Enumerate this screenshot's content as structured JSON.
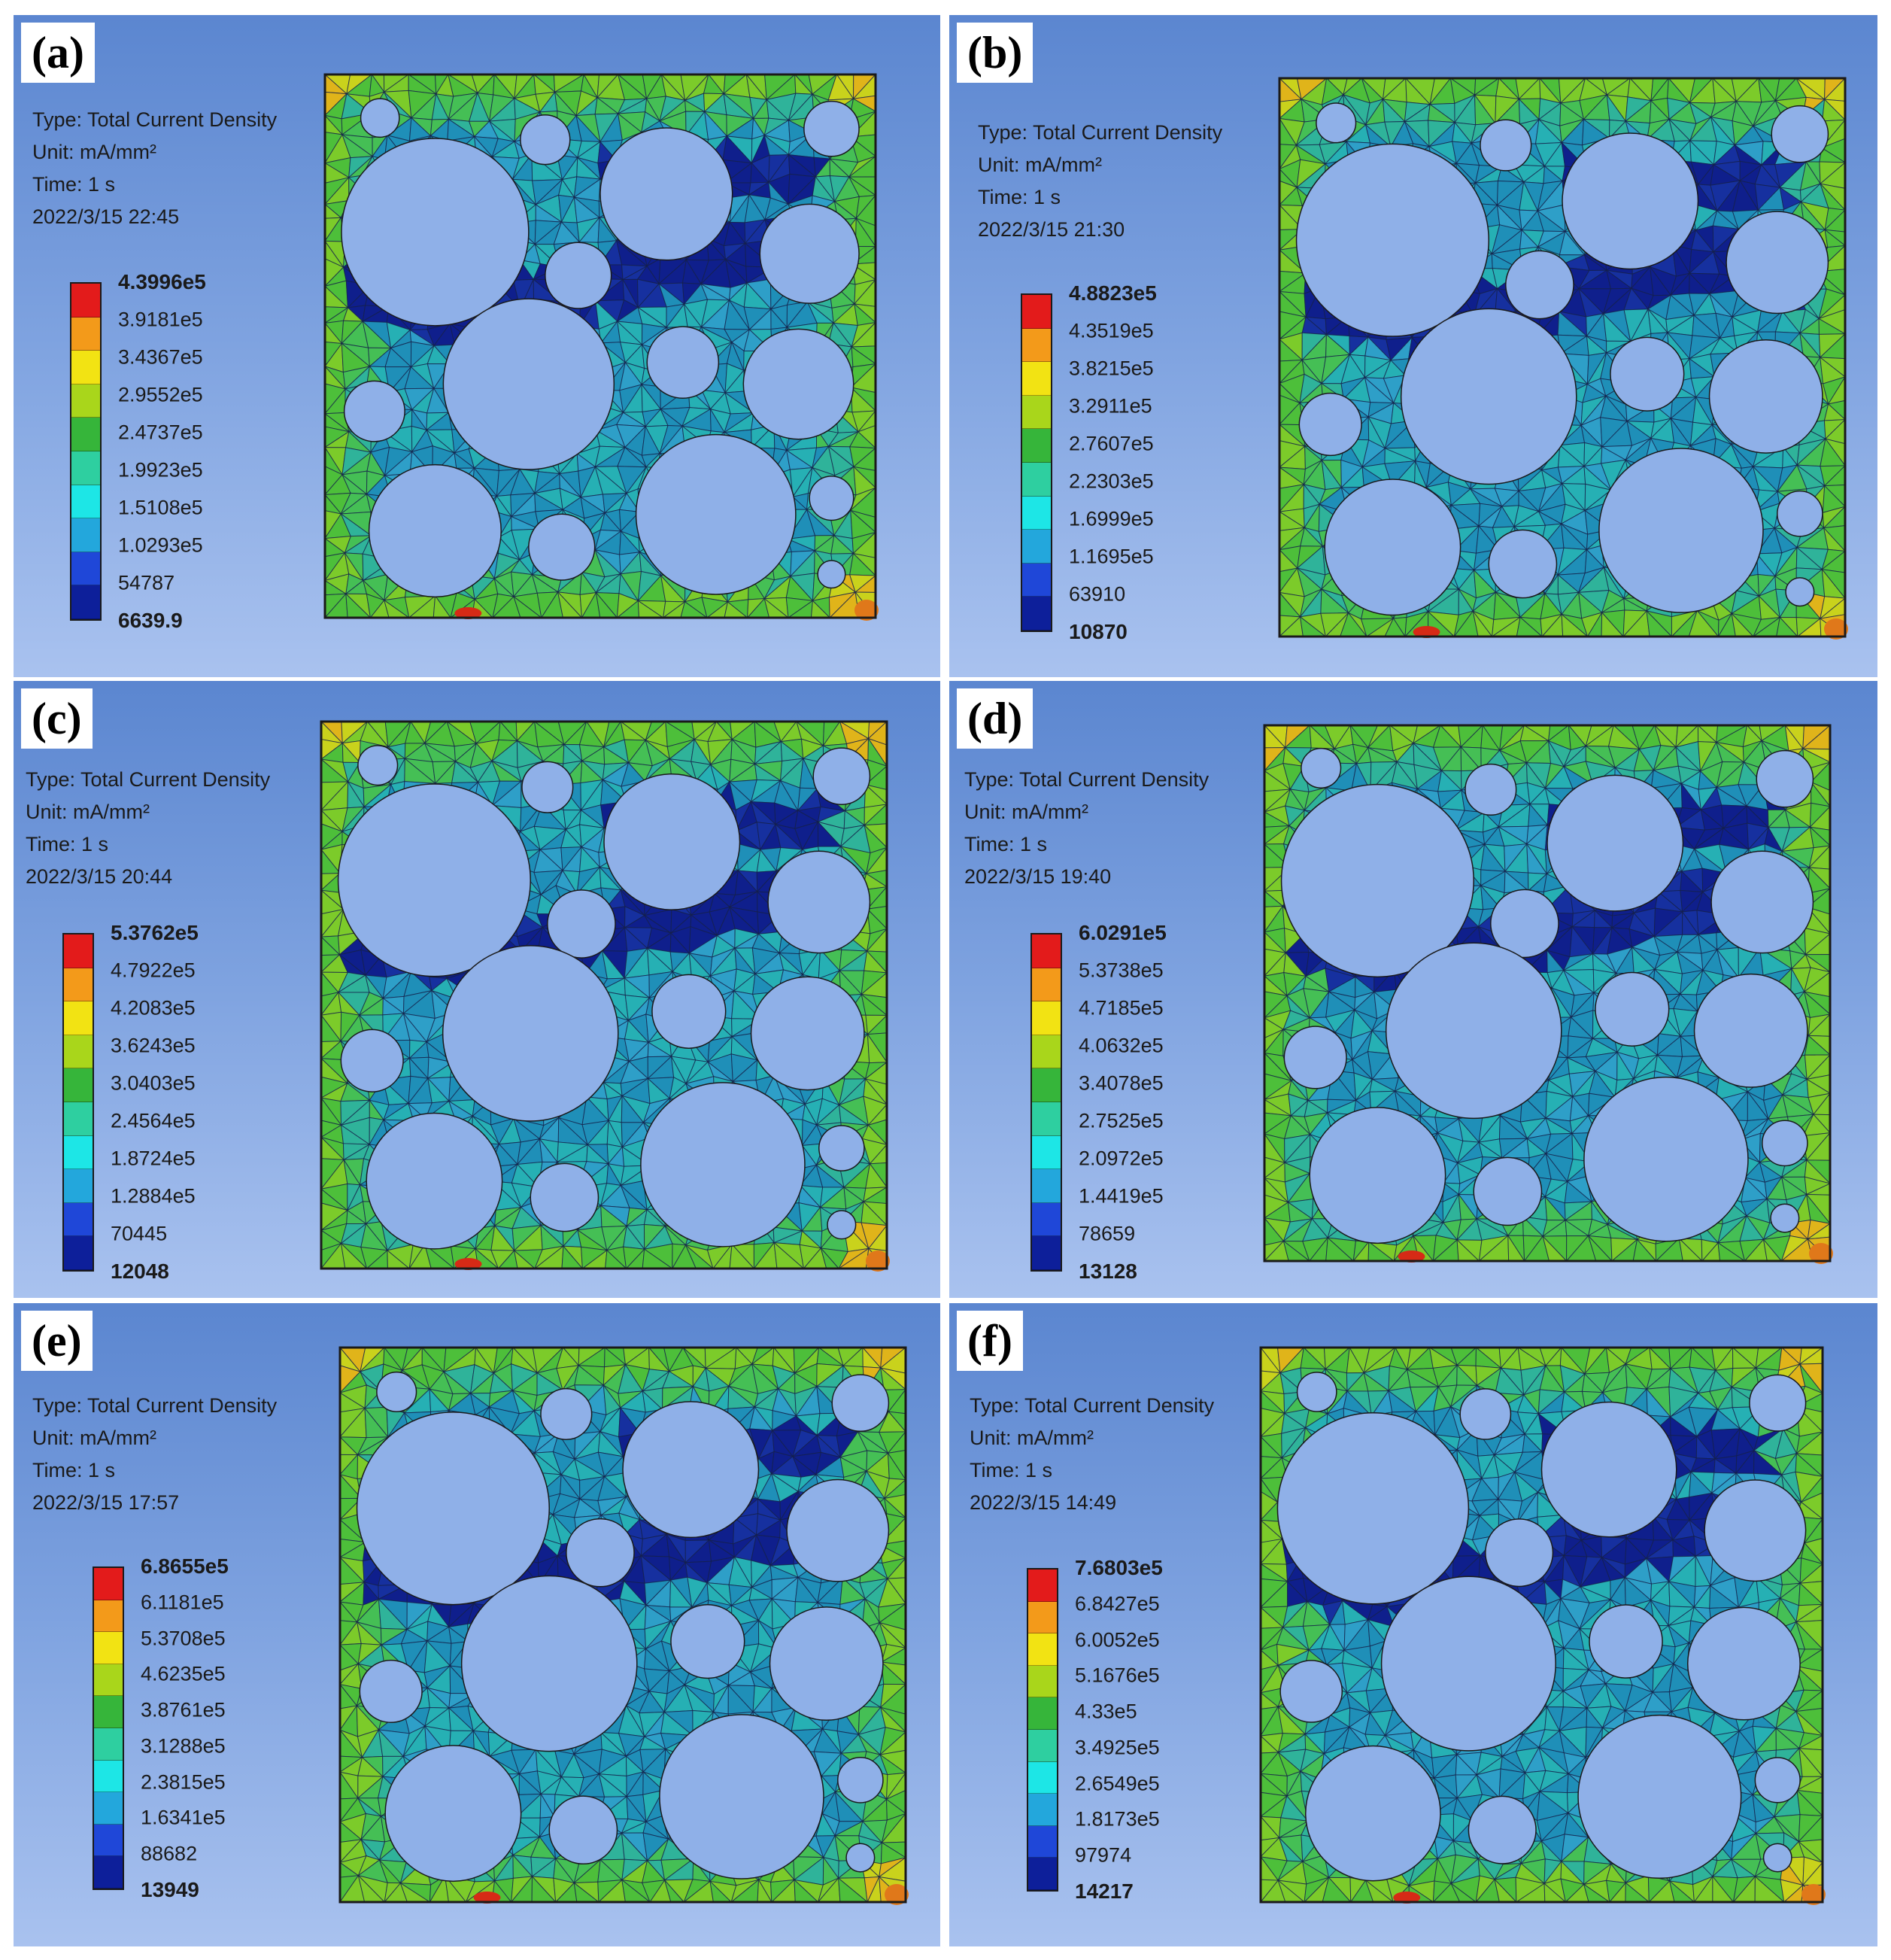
{
  "panels": [
    {
      "label": "(a)",
      "type": "Type: Total Current Density",
      "unit": "Unit: mA/mm²",
      "time": "Time: 1 s",
      "date": "2022/3/15 22:45",
      "legend": [
        "4.3996e5",
        "3.9181e5",
        "3.4367e5",
        "2.9552e5",
        "2.4737e5",
        "1.9923e5",
        "1.5108e5",
        "1.0293e5",
        "54787",
        "6639.9"
      ]
    },
    {
      "label": "(b)",
      "type": "Type: Total Current Density",
      "unit": "Unit: mA/mm²",
      "time": "Time: 1 s",
      "date": "2022/3/15 21:30",
      "legend": [
        "4.8823e5",
        "4.3519e5",
        "3.8215e5",
        "3.2911e5",
        "2.7607e5",
        "2.2303e5",
        "1.6999e5",
        "1.1695e5",
        "63910",
        "10870"
      ]
    },
    {
      "label": "(c)",
      "type": "Type: Total Current Density",
      "unit": "Unit: mA/mm²",
      "time": "Time: 1 s",
      "date": "2022/3/15 20:44",
      "legend": [
        "5.3762e5",
        "4.7922e5",
        "4.2083e5",
        "3.6243e5",
        "3.0403e5",
        "2.4564e5",
        "1.8724e5",
        "1.2884e5",
        "70445",
        "12048"
      ]
    },
    {
      "label": "(d)",
      "type": "Type: Total Current Density",
      "unit": "Unit: mA/mm²",
      "time": "Time: 1 s",
      "date": "2022/3/15 19:40",
      "legend": [
        "6.0291e5",
        "5.3738e5",
        "4.7185e5",
        "4.0632e5",
        "3.4078e5",
        "2.7525e5",
        "2.0972e5",
        "1.4419e5",
        "78659",
        "13128"
      ]
    },
    {
      "label": "(e)",
      "type": "Type: Total Current Density",
      "unit": "Unit: mA/mm²",
      "time": "Time: 1 s",
      "date": "2022/3/15 17:57",
      "legend": [
        "6.8655e5",
        "6.1181e5",
        "5.3708e5",
        "4.6235e5",
        "3.8761e5",
        "3.1288e5",
        "2.3815e5",
        "1.6341e5",
        "88682",
        "13949"
      ]
    },
    {
      "label": "(f)",
      "type": "Type: Total Current Density",
      "unit": "Unit: mA/mm²",
      "time": "Time: 1 s",
      "date": "2022/3/15 14:49",
      "legend": [
        "7.6803e5",
        "6.8427e5",
        "6.0052e5",
        "5.1676e5",
        "4.33e5",
        "3.4925e5",
        "2.6549e5",
        "1.8173e5",
        "97974",
        "14217"
      ]
    }
  ],
  "colors": {
    "scale": [
      "#e31b1b",
      "#f39a1a",
      "#f2e313",
      "#a9d61b",
      "#36b53a",
      "#2ecfa0",
      "#1de6e6",
      "#23a7dc",
      "#1f47d8",
      "#0d1f9a"
    ],
    "field_low": "#0f1f8c",
    "field_mid": "#1f8fb8",
    "field_high": "#4dbf3a",
    "hole": "#8fb0e8",
    "panel_bg": "#7fa3e0"
  }
}
